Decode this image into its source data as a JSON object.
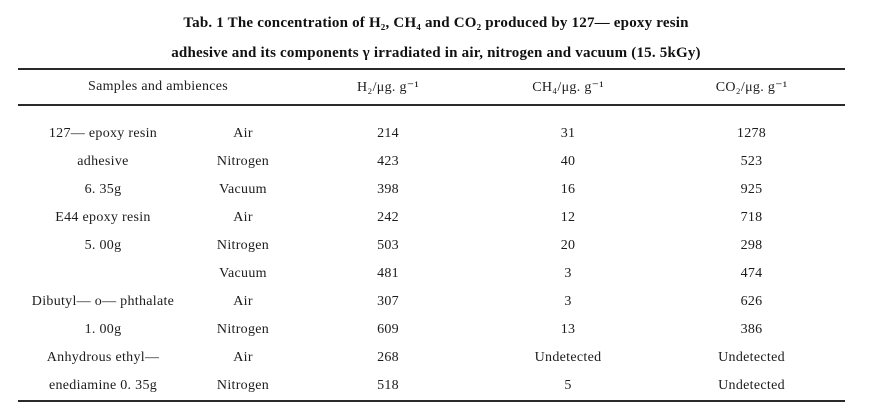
{
  "title": {
    "line1": "Tab. 1 The concentration of H₂, CH₄ and CO₂ produced by 127— epoxy resin",
    "line2": "adhesive and its components γ irradiated in air, nitrogen and vacuum (15. 5kGy)"
  },
  "table": {
    "headers": [
      "Samples and ambiences",
      "H₂/μg. g⁻¹",
      "CH₄/μg. g⁻¹",
      "CO₂/μg. g⁻¹"
    ],
    "cell_names": [
      "sample",
      "ambience",
      "h2-value",
      "ch4-value",
      "co2-value"
    ],
    "rows": [
      {
        "cells": [
          "127— epoxy resin",
          "Air",
          "214",
          "31",
          "1278"
        ]
      },
      {
        "cells": [
          "adhesive",
          "Nitrogen",
          "423",
          "40",
          "523"
        ]
      },
      {
        "cells": [
          "6. 35g",
          "Vacuum",
          "398",
          "16",
          "925"
        ]
      },
      {
        "cells": [
          "E44 epoxy resin",
          "Air",
          "242",
          "12",
          "718"
        ]
      },
      {
        "cells": [
          "5. 00g",
          "Nitrogen",
          "503",
          "20",
          "298"
        ]
      },
      {
        "cells": [
          "",
          "Vacuum",
          "481",
          "3",
          "474"
        ]
      },
      {
        "cells": [
          "Dibutyl— o— phthalate",
          "Air",
          "307",
          "3",
          "626"
        ]
      },
      {
        "cells": [
          "1. 00g",
          "Nitrogen",
          "609",
          "13",
          "386"
        ]
      },
      {
        "cells": [
          "Anhydrous ethyl—",
          "Air",
          "268",
          "Undetected",
          "Undetected"
        ]
      },
      {
        "cells": [
          "enediamine 0. 35g",
          "Nitrogen",
          "518",
          "5",
          "Undetected"
        ]
      }
    ]
  }
}
